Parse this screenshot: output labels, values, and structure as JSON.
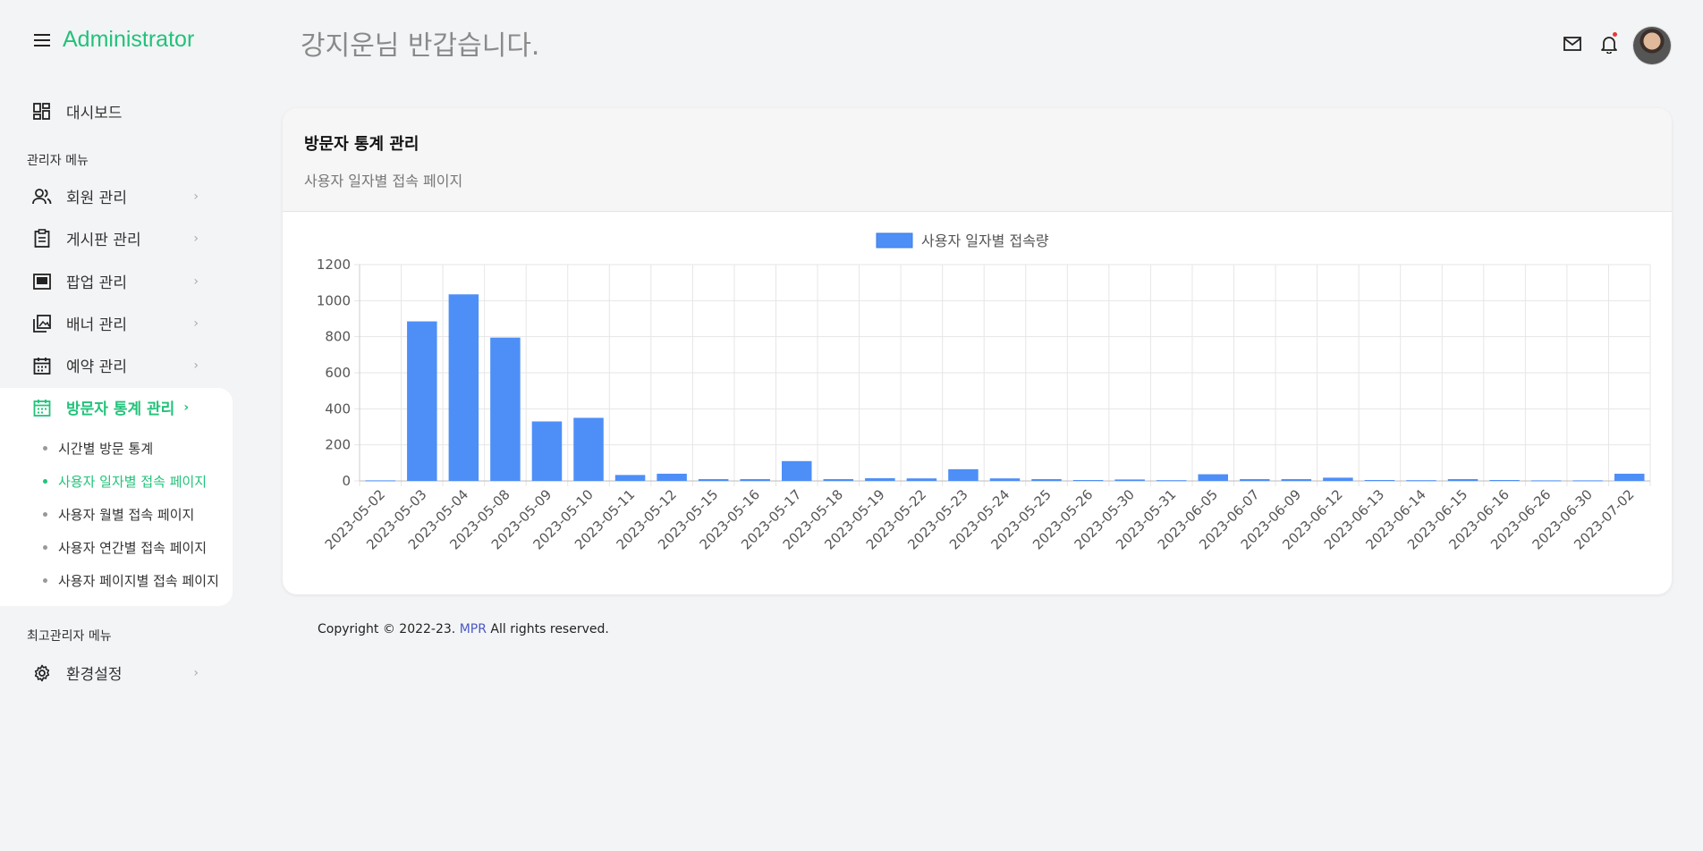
{
  "sidebar": {
    "title": "Administrator",
    "dashboard_label": "대시보드",
    "admin_section_label": "관리자 메뉴",
    "items": [
      {
        "label": "회원 관리",
        "icon": "users-icon"
      },
      {
        "label": "게시판 관리",
        "icon": "clipboard-icon"
      },
      {
        "label": "팝업 관리",
        "icon": "popup-icon"
      },
      {
        "label": "배너 관리",
        "icon": "image-icon"
      },
      {
        "label": "예약 관리",
        "icon": "calendar-icon"
      },
      {
        "label": "방문자 통계 관리",
        "icon": "calendar-icon"
      }
    ],
    "sub_items": [
      {
        "label": "시간별 방문 통계"
      },
      {
        "label": "사용자 일자별 접속 페이지"
      },
      {
        "label": "사용자 월별 접속 페이지"
      },
      {
        "label": "사용자 연간별 접속 페이지"
      },
      {
        "label": "사용자 페이지별 접속 페이지"
      }
    ],
    "super_section_label": "최고관리자 메뉴",
    "settings_label": "환경설정"
  },
  "header": {
    "greeting": "강지운님 반갑습니다.",
    "accent_color": "#22c27a"
  },
  "card": {
    "title": "방문자 통계 관리",
    "subtitle": "사용자 일자별 접속 페이지"
  },
  "chart_data": {
    "type": "bar",
    "legend": "사용자 일자별 접속량",
    "legend_position": "top",
    "color": "#4e8ff7",
    "ylim": [
      0,
      1200
    ],
    "yticks": [
      0,
      200,
      400,
      600,
      800,
      1000,
      1200
    ],
    "grid": true,
    "categories": [
      "2023-05-02",
      "2023-05-03",
      "2023-05-04",
      "2023-05-08",
      "2023-05-09",
      "2023-05-10",
      "2023-05-11",
      "2023-05-12",
      "2023-05-15",
      "2023-05-16",
      "2023-05-17",
      "2023-05-18",
      "2023-05-19",
      "2023-05-22",
      "2023-05-23",
      "2023-05-24",
      "2023-05-25",
      "2023-05-26",
      "2023-05-30",
      "2023-05-31",
      "2023-06-05",
      "2023-06-07",
      "2023-06-09",
      "2023-06-12",
      "2023-06-13",
      "2023-06-14",
      "2023-06-15",
      "2023-06-16",
      "2023-06-26",
      "2023-06-30",
      "2023-07-02"
    ],
    "values": [
      3,
      885,
      1035,
      795,
      330,
      350,
      33,
      40,
      10,
      10,
      110,
      10,
      15,
      14,
      65,
      14,
      10,
      5,
      8,
      4,
      37,
      10,
      10,
      18,
      5,
      4,
      10,
      5,
      3,
      3,
      40
    ]
  },
  "footer": {
    "copyright_prefix": "Copyright © 2022-23.",
    "brand": "MPR",
    "copyright_suffix": "All rights reserved."
  }
}
